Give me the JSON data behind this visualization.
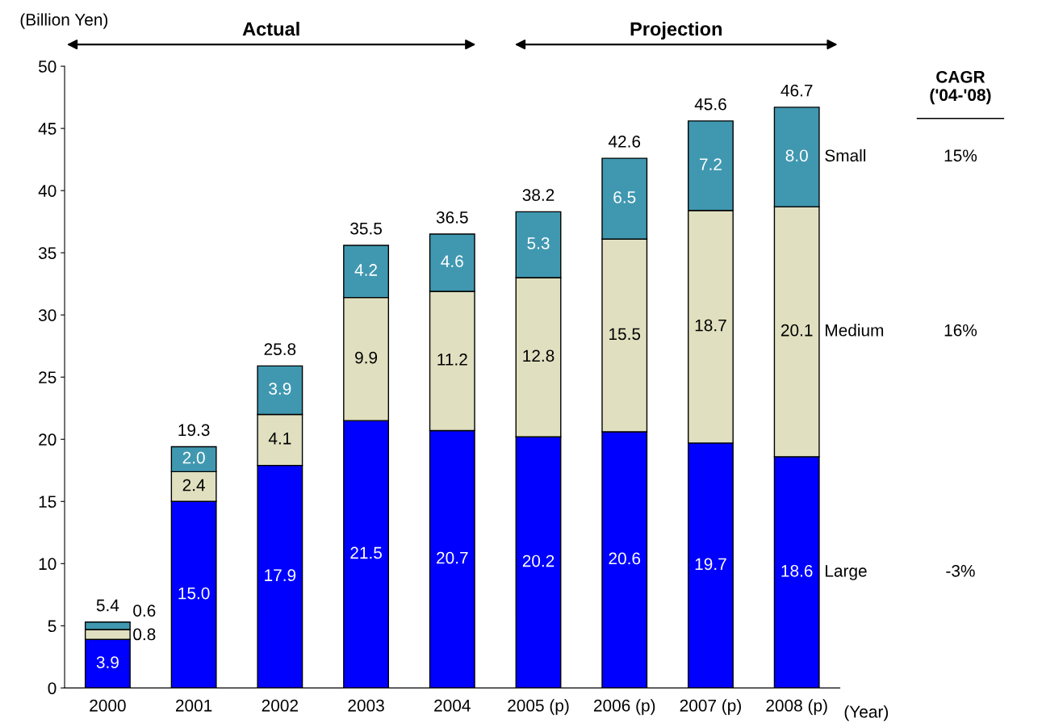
{
  "chart_data": {
    "type": "bar",
    "stacked": true,
    "ylabel": "(Billion Yen)",
    "xlabel": "(Year)",
    "categories": [
      "2000",
      "2001",
      "2002",
      "2003",
      "2004",
      "2005 (p)",
      "2006 (p)",
      "2007 (p)",
      "2008 (p)"
    ],
    "series": [
      {
        "name": "Large",
        "color": "#0000ff",
        "values": [
          3.9,
          15.0,
          17.9,
          21.5,
          20.7,
          20.2,
          20.6,
          19.7,
          18.6
        ],
        "value_labels": [
          "3.9",
          "15.0",
          "17.9",
          "21.5",
          "20.7",
          "20.2",
          "20.6",
          "19.7",
          "18.6"
        ]
      },
      {
        "name": "Medium",
        "color": "#e0e0c0",
        "values": [
          0.8,
          2.4,
          4.1,
          9.9,
          11.2,
          12.8,
          15.5,
          18.7,
          20.1
        ],
        "value_labels": [
          "0.8",
          "2.4",
          "4.1",
          "9.9",
          "11.2",
          "12.8",
          "15.5",
          "18.7",
          "20.1"
        ]
      },
      {
        "name": "Small",
        "color": "#4098b0",
        "values": [
          0.6,
          2.0,
          3.9,
          4.2,
          4.6,
          5.3,
          6.5,
          7.2,
          8.0
        ],
        "value_labels": [
          "0.6",
          "2.0",
          "3.9",
          "4.2",
          "4.6",
          "5.3",
          "6.5",
          "7.2",
          "8.0"
        ]
      }
    ],
    "totals": [
      "5.4",
      "19.3",
      "25.8",
      "35.5",
      "36.5",
      "38.2",
      "42.6",
      "45.6",
      "46.7"
    ],
    "ylim": [
      0,
      50
    ],
    "yticks": [
      0,
      5,
      10,
      15,
      20,
      25,
      30,
      35,
      40,
      45,
      50
    ],
    "grid": false,
    "legend": false,
    "annotations": [
      "Actual",
      "Projection",
      "CAGR\n('04-'08)",
      "15%",
      "16%",
      "-3%"
    ]
  }
}
